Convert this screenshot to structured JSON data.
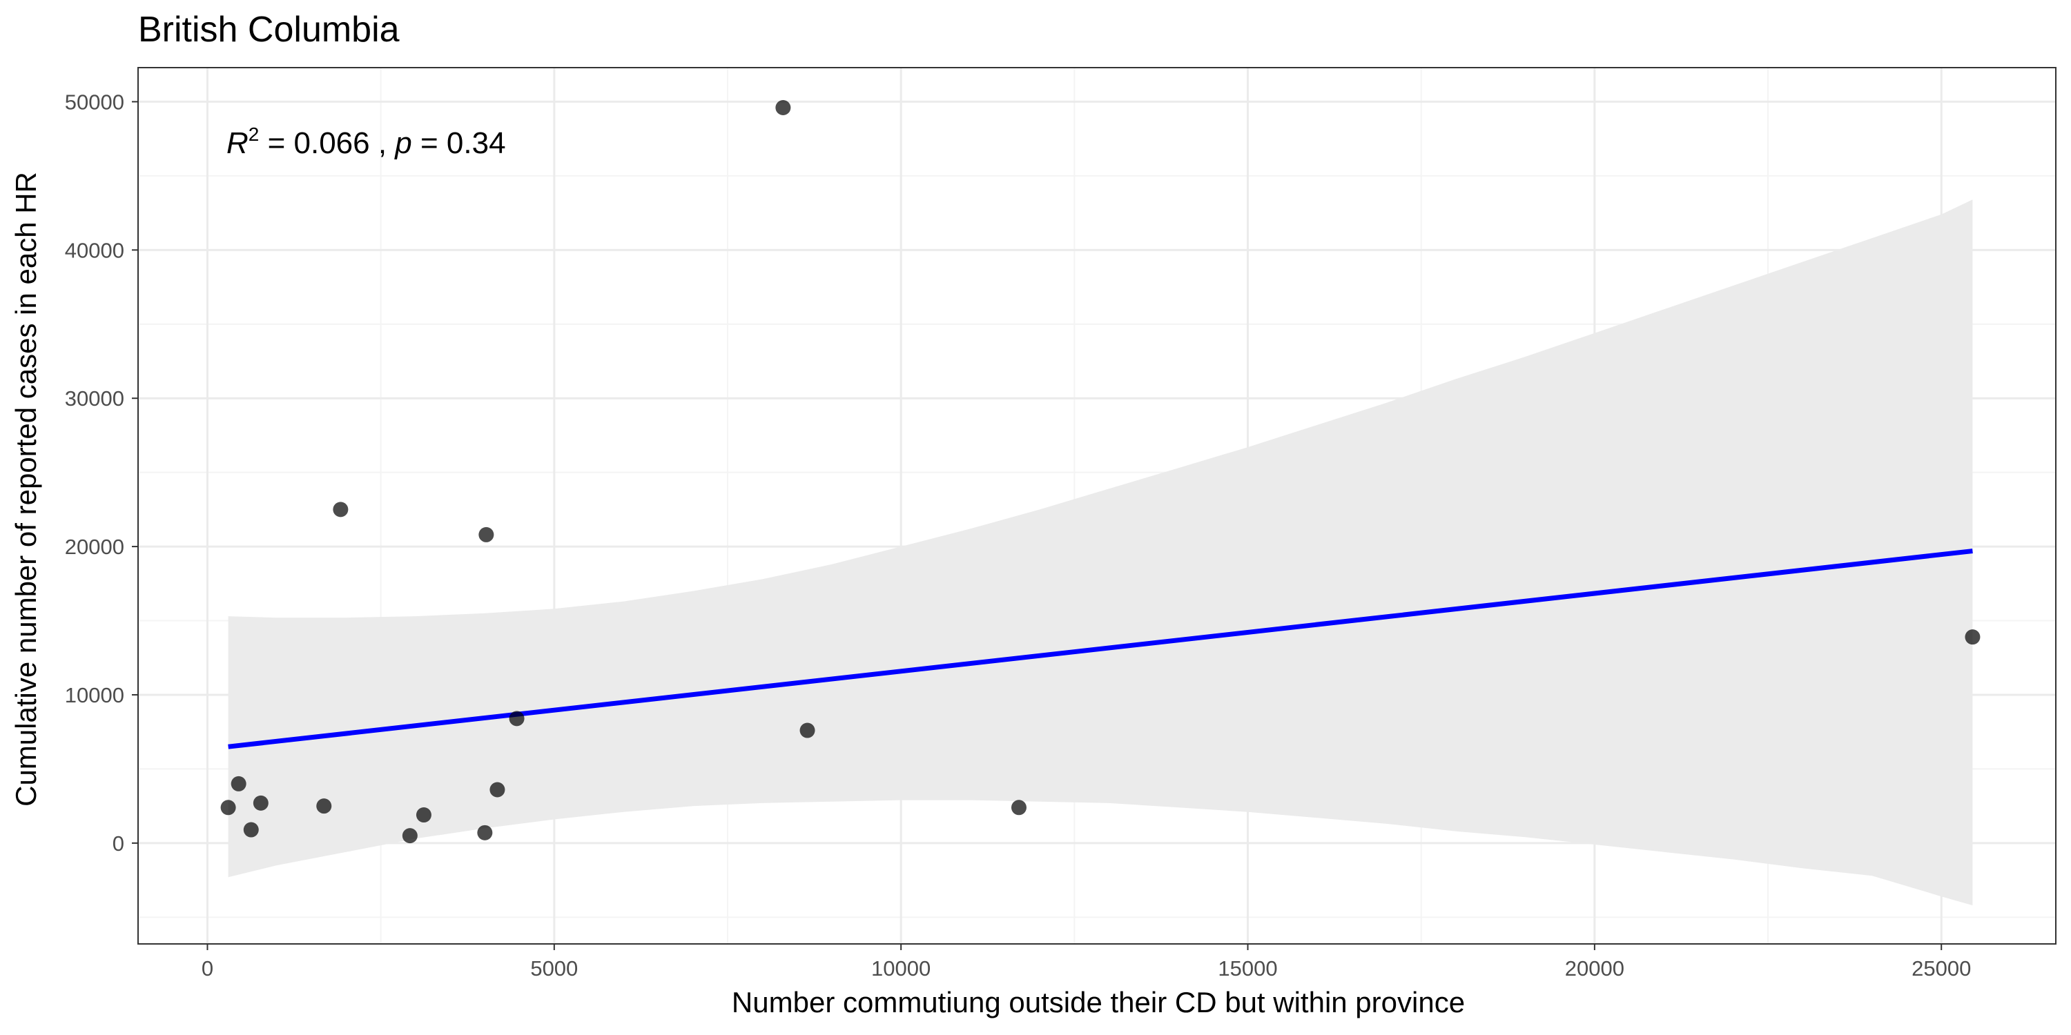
{
  "chart_data": {
    "type": "scatter",
    "title": "British Columbia",
    "xlabel": "Number commutiung outside their CD but within province",
    "ylabel": "Cumulative number of reported cases in each HR",
    "xlim": [
      -1000,
      26650
    ],
    "ylim": [
      -6800,
      52300
    ],
    "x_ticks": [
      0,
      5000,
      10000,
      15000,
      20000,
      25000
    ],
    "x_tick_labels": [
      "0",
      "5000",
      "10000",
      "15000",
      "20000",
      "25000"
    ],
    "y_ticks": [
      0,
      10000,
      20000,
      30000,
      40000,
      50000
    ],
    "y_tick_labels": [
      "0",
      "10000",
      "20000",
      "30000",
      "40000",
      "50000"
    ],
    "grid": true,
    "annotation": {
      "r_symbol": "R",
      "r_exp": "2",
      "r_value": " = 0.066 , ",
      "p_symbol": "p",
      "p_value": " = 0.34"
    },
    "points": [
      {
        "x": 300,
        "y": 2400
      },
      {
        "x": 450,
        "y": 4000
      },
      {
        "x": 630,
        "y": 900
      },
      {
        "x": 770,
        "y": 2700
      },
      {
        "x": 1680,
        "y": 2500
      },
      {
        "x": 1920,
        "y": 22500
      },
      {
        "x": 2920,
        "y": 500
      },
      {
        "x": 3120,
        "y": 1900
      },
      {
        "x": 4000,
        "y": 700
      },
      {
        "x": 4020,
        "y": 20800
      },
      {
        "x": 4180,
        "y": 3600
      },
      {
        "x": 4460,
        "y": 8400
      },
      {
        "x": 8300,
        "y": 49600
      },
      {
        "x": 8650,
        "y": 7600
      },
      {
        "x": 11700,
        "y": 2400
      },
      {
        "x": 25450,
        "y": 13900
      }
    ],
    "regression": {
      "x": [
        300,
        25450
      ],
      "y": [
        6500,
        19700
      ],
      "color": "#0000ff"
    },
    "confidence_band": {
      "x": [
        300,
        1000,
        2000,
        3000,
        4000,
        5000,
        6000,
        7000,
        8000,
        9000,
        10000,
        11000,
        12000,
        13000,
        14000,
        15000,
        16000,
        17000,
        18000,
        19000,
        20000,
        21000,
        22000,
        23000,
        24000,
        25000,
        25450
      ],
      "upper": [
        15300,
        15200,
        15200,
        15300,
        15500,
        15800,
        16300,
        17000,
        17800,
        18800,
        20000,
        21200,
        22500,
        23900,
        25300,
        26700,
        28200,
        29700,
        31300,
        32800,
        34400,
        36000,
        37600,
        39200,
        40800,
        42400,
        43400
      ],
      "lower": [
        -2300,
        -1500,
        -600,
        300,
        1000,
        1600,
        2100,
        2500,
        2700,
        2800,
        2900,
        2900,
        2800,
        2700,
        2400,
        2100,
        1700,
        1300,
        800,
        400,
        -100,
        -600,
        -1100,
        -1700,
        -2200,
        -3600,
        -4200
      ],
      "color": "#ebebeb"
    },
    "colors": {
      "point": "#000000",
      "panel_border": "#333333",
      "grid_major": "#ebebeb",
      "grid_minor": "#f4f4f4"
    }
  }
}
